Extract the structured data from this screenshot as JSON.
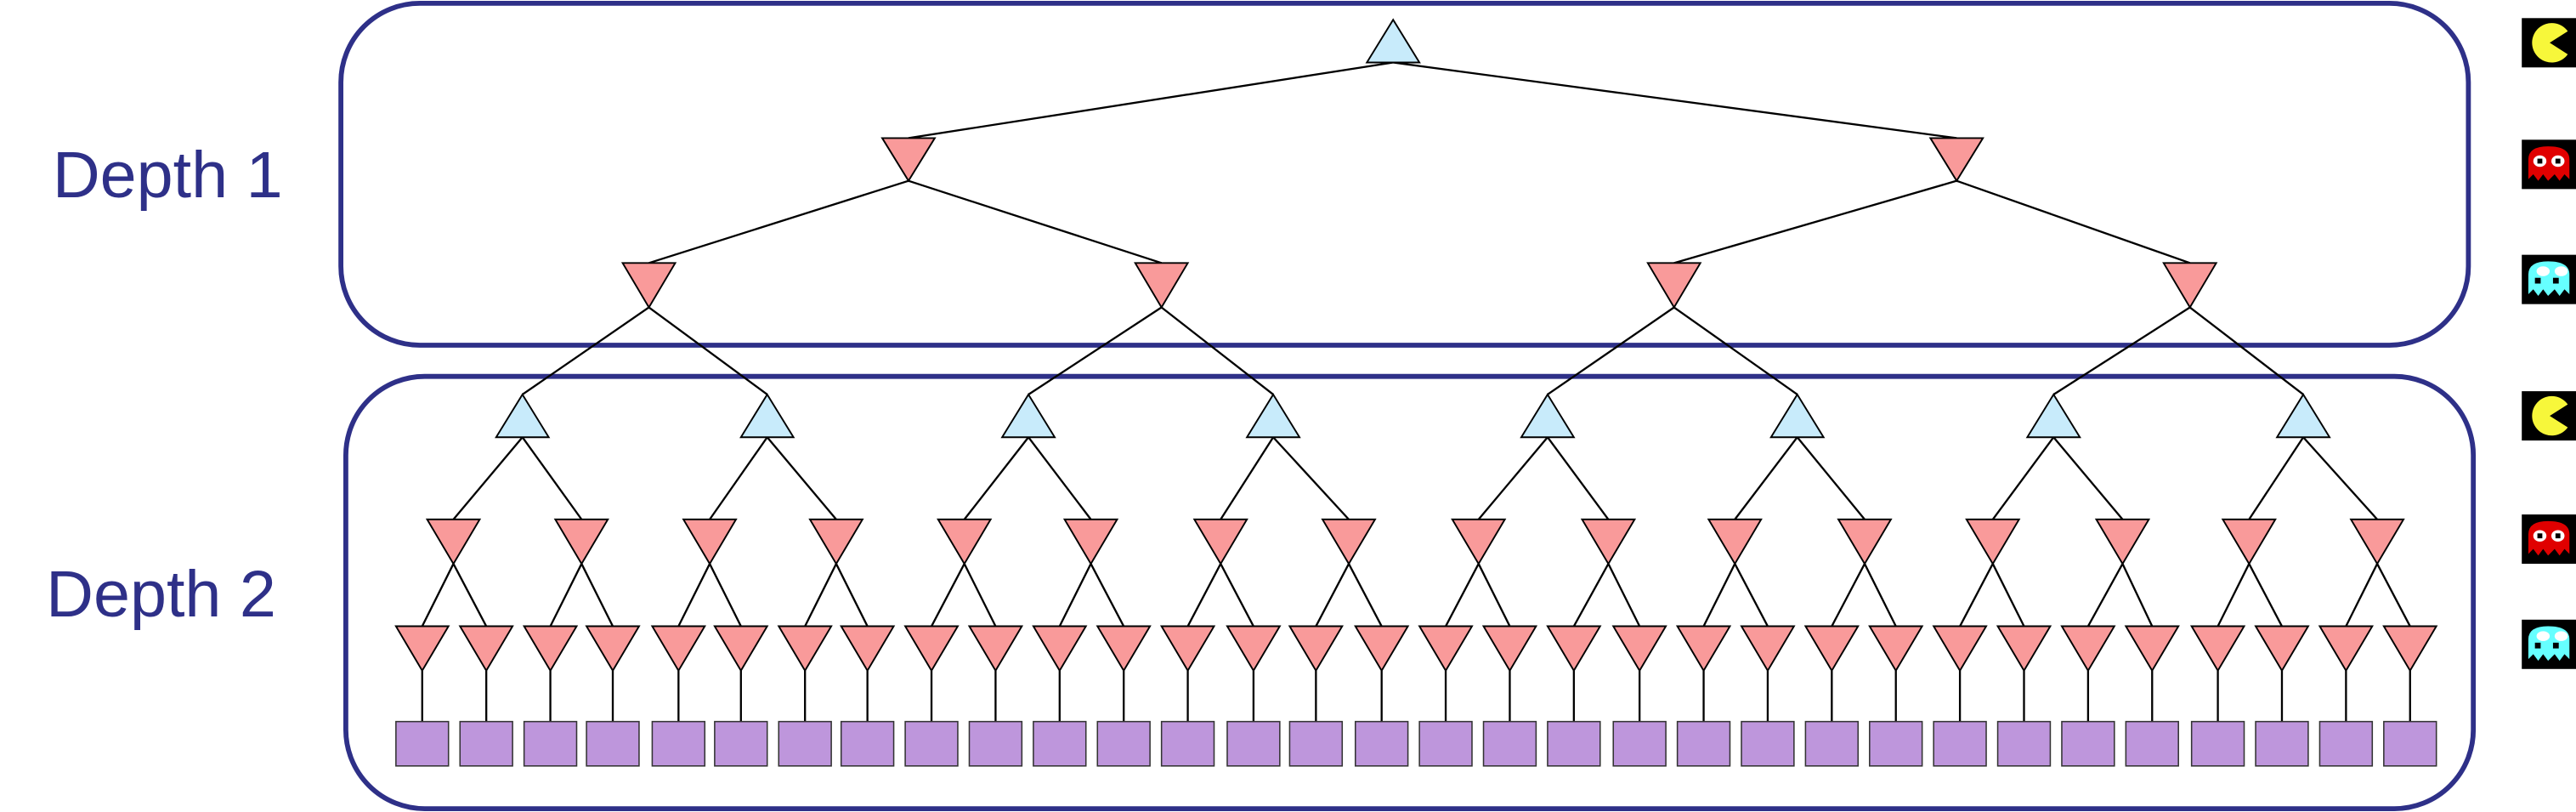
{
  "labels": {
    "depth1": "Depth 1",
    "depth2": "Depth 2"
  },
  "colors": {
    "box_border": "#2e3088",
    "label_text": "#2e3088",
    "min_node": "#f99a9a",
    "max_node": "#c8ebfb",
    "leaf_node": "#be96dc",
    "edge": "#000000"
  },
  "node_types": {
    "max": "up-triangle",
    "min": "down-triangle",
    "leaf": "square"
  },
  "agent_icons": [
    {
      "name": "pacman-icon",
      "role": "max"
    },
    {
      "name": "red-ghost-icon",
      "role": "min"
    },
    {
      "name": "cyan-ghost-icon",
      "role": "min"
    },
    {
      "name": "pacman-icon",
      "role": "max"
    },
    {
      "name": "red-ghost-icon",
      "role": "min"
    },
    {
      "name": "cyan-ghost-icon",
      "role": "min"
    }
  ]
}
